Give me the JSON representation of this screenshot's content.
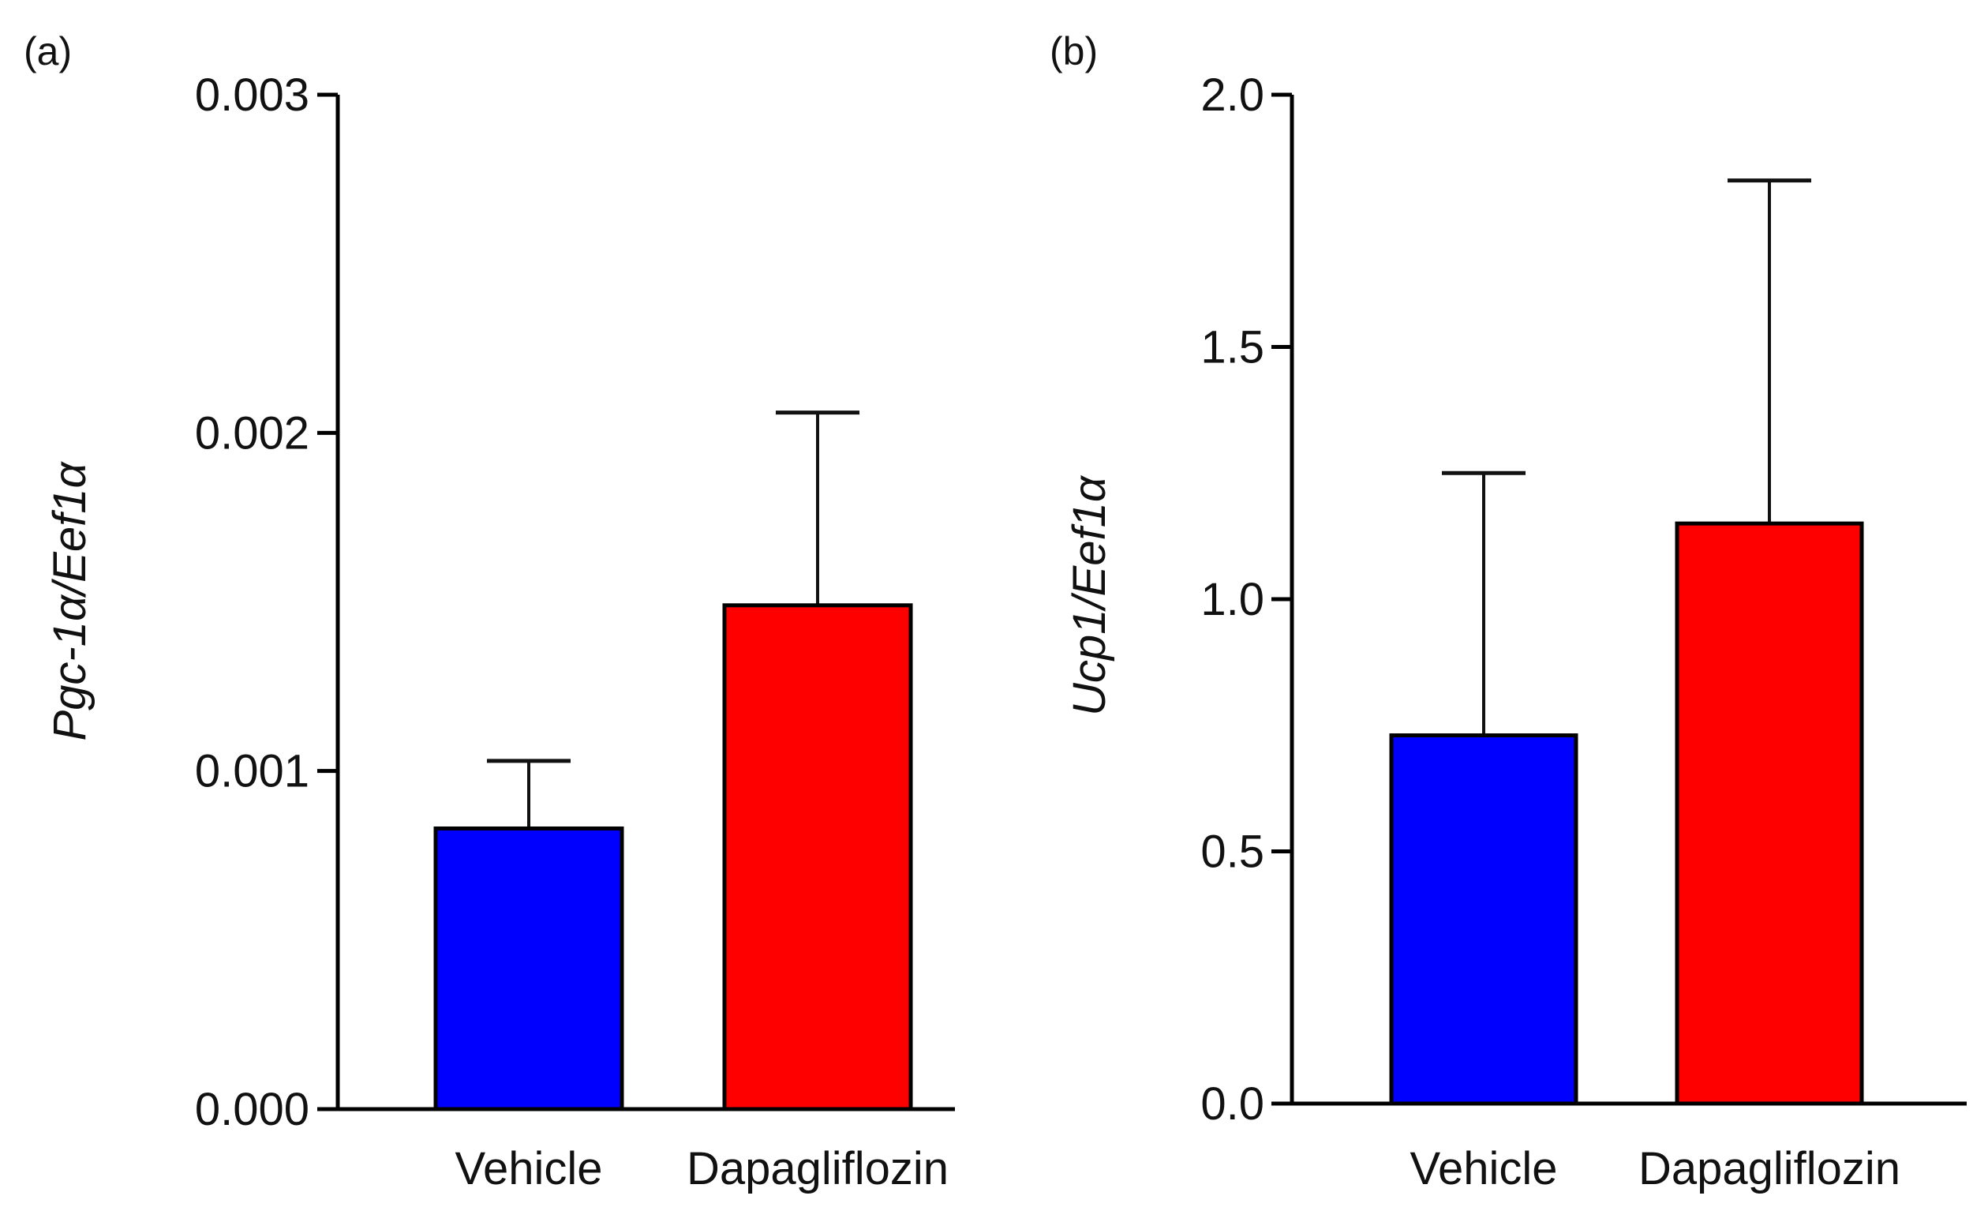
{
  "chart_data": [
    {
      "type": "bar",
      "panel_label": "(a)",
      "categories": [
        "Vehicle",
        "Dapagliflozin"
      ],
      "values": [
        0.00083,
        0.00149
      ],
      "errors": [
        0.0002,
        0.00057
      ],
      "colors": [
        "#0000FF",
        "#FF0000"
      ],
      "ylabel": "Pgc-1α/Eef1α",
      "ylim": [
        0,
        0.003
      ],
      "yticks": [
        0.0,
        0.001,
        0.002,
        0.003
      ],
      "ytick_labels": [
        "0.000",
        "0.001",
        "0.002",
        "0.003"
      ],
      "grid": false
    },
    {
      "type": "bar",
      "panel_label": "(b)",
      "categories": [
        "Vehicle",
        "Dapagliflozin"
      ],
      "values": [
        0.73,
        1.15
      ],
      "errors": [
        0.52,
        0.68
      ],
      "colors": [
        "#0000FF",
        "#FF0000"
      ],
      "ylabel": "Ucp1/Eef1α",
      "ylim": [
        0,
        2.0
      ],
      "yticks": [
        0.0,
        0.5,
        1.0,
        1.5,
        2.0
      ],
      "ytick_labels": [
        "0.0",
        "0.5",
        "1.0",
        "1.5",
        "2.0"
      ],
      "grid": false
    }
  ]
}
